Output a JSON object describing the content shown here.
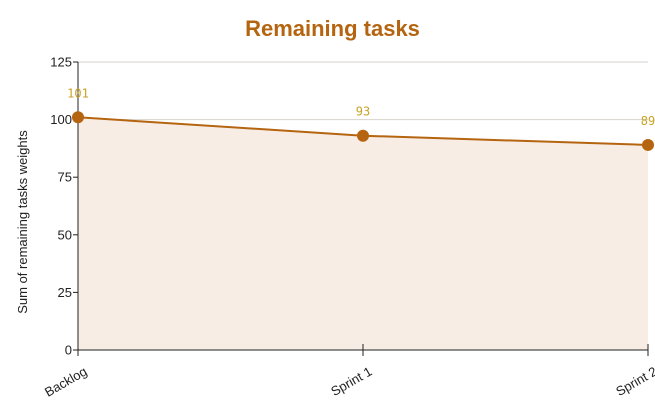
{
  "chart_data": {
    "type": "area",
    "title": "Remaining tasks",
    "ylabel": "Sum of remaining tasks weights",
    "xlabel": "",
    "categories": [
      "Backlog",
      "Sprint 1",
      "Sprint 2"
    ],
    "series": [
      {
        "values": [
          101,
          93,
          89
        ]
      }
    ],
    "data_labels": [
      "101",
      "93",
      "89"
    ],
    "ylim": [
      0,
      125
    ],
    "yticks": [
      0,
      25,
      50,
      75,
      100,
      125
    ],
    "y_tick_labels": [
      "0",
      "25",
      "50",
      "75",
      "100",
      "125"
    ],
    "grid": true,
    "legend": "none"
  },
  "colors": {
    "title": "#b5640f",
    "line": "#b5640f",
    "marker": "#b5640f",
    "fill": "#f7ede4",
    "grid": "#d7d2cc",
    "data_label": "#c9a227",
    "axis": "#222222"
  }
}
